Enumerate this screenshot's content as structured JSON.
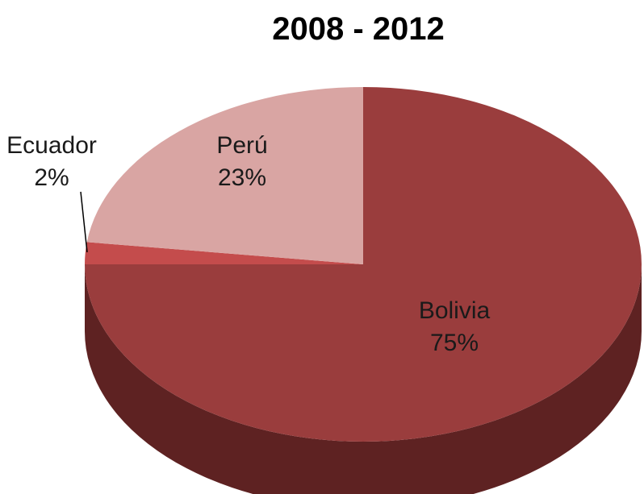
{
  "chart_data": {
    "type": "pie",
    "title": "2008 - 2012",
    "slices": [
      {
        "label": "Bolivia",
        "value": 75,
        "percent_label": "75%",
        "color": "#9a3d3d",
        "side_color": "#5e2222"
      },
      {
        "label": "Perú",
        "value": 23,
        "percent_label": "23%",
        "color": "#d9a5a3",
        "side_color": "#9a6e6c"
      },
      {
        "label": "Ecuador",
        "value": 2,
        "percent_label": "2%",
        "color": "#c44c4c",
        "side_color": "#7a2a2a"
      }
    ],
    "style": "3d"
  }
}
